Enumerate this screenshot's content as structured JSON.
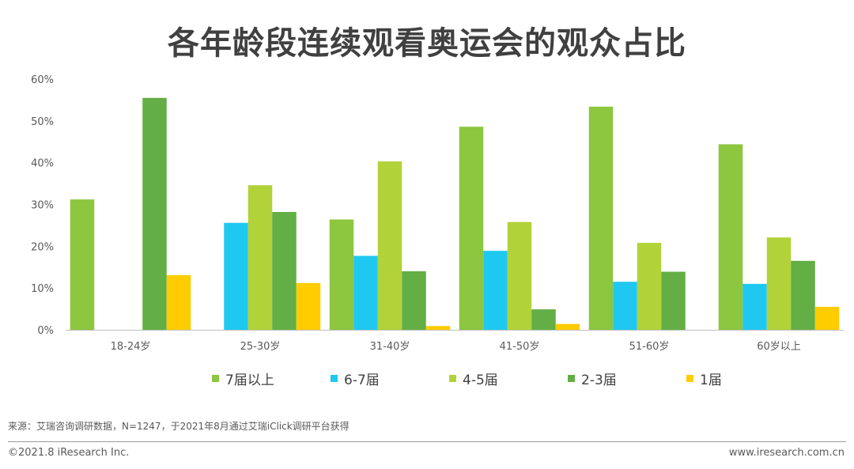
{
  "page": {
    "source": "来源：艾瑞咨询调研数据，N=1247，于2021年8月通过艾瑞iClick调研平台获得",
    "copyright": "©2021.8 iResearch Inc.",
    "website": "www.iresearch.com.cn"
  },
  "chart_data": {
    "type": "bar",
    "title": "各年龄段连续观看奥运会的观众占比",
    "xlabel": "",
    "ylabel": "",
    "ylim": [
      0,
      60
    ],
    "yticks": [
      "0%",
      "10%",
      "20%",
      "30%",
      "40%",
      "50%",
      "60%"
    ],
    "categories": [
      "18-24岁",
      "25-30岁",
      "31-40岁",
      "41-50岁",
      "51-60岁",
      "60岁以上"
    ],
    "series": [
      {
        "name": "7届以上",
        "color": "#8DC63F",
        "values": [
          31.2,
          0,
          26.4,
          48.6,
          53.4,
          44.4
        ]
      },
      {
        "name": "6-7届",
        "color": "#1FC8F0",
        "values": [
          0,
          25.6,
          17.7,
          18.9,
          11.5,
          11.0
        ]
      },
      {
        "name": "4-5届",
        "color": "#B1D238",
        "values": [
          0,
          34.6,
          40.3,
          25.8,
          20.8,
          22.1
        ]
      },
      {
        "name": "2-3届",
        "color": "#63AE45",
        "values": [
          55.5,
          28.2,
          14.0,
          4.9,
          13.9,
          16.5
        ]
      },
      {
        "name": "1届",
        "color": "#FFCC00",
        "values": [
          13.1,
          11.2,
          0.9,
          1.4,
          0,
          5.5
        ]
      }
    ],
    "grid": false,
    "legend": "bottom"
  }
}
